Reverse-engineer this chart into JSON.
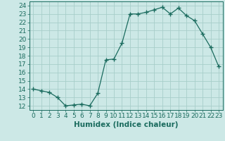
{
  "x": [
    0,
    1,
    2,
    3,
    4,
    5,
    6,
    7,
    8,
    9,
    10,
    11,
    12,
    13,
    14,
    15,
    16,
    17,
    18,
    19,
    20,
    21,
    22,
    23
  ],
  "y": [
    14.0,
    13.8,
    13.6,
    13.0,
    12.0,
    12.1,
    12.2,
    12.0,
    13.5,
    17.5,
    17.6,
    19.5,
    23.0,
    23.0,
    23.2,
    23.5,
    23.8,
    23.0,
    23.7,
    22.8,
    22.2,
    20.6,
    19.0,
    16.7
  ],
  "line_color": "#1a6b5e",
  "marker": "+",
  "marker_size": 4,
  "bg_color": "#cce8e6",
  "grid_color": "#a8ceca",
  "xlabel": "Humidex (Indice chaleur)",
  "xlim": [
    -0.5,
    23.5
  ],
  "ylim": [
    11.5,
    24.5
  ],
  "yticks": [
    12,
    13,
    14,
    15,
    16,
    17,
    18,
    19,
    20,
    21,
    22,
    23,
    24
  ],
  "xticks": [
    0,
    1,
    2,
    3,
    4,
    5,
    6,
    7,
    8,
    9,
    10,
    11,
    12,
    13,
    14,
    15,
    16,
    17,
    18,
    19,
    20,
    21,
    22,
    23
  ],
  "xtick_labels": [
    "0",
    "1",
    "2",
    "3",
    "4",
    "5",
    "6",
    "7",
    "8",
    "9",
    "10",
    "11",
    "12",
    "13",
    "14",
    "15",
    "16",
    "17",
    "18",
    "19",
    "20",
    "21",
    "22",
    "23"
  ],
  "tick_color": "#1a6b5e",
  "axis_color": "#1a6b5e",
  "font_size": 6.5,
  "xlabel_fontsize": 7.5
}
